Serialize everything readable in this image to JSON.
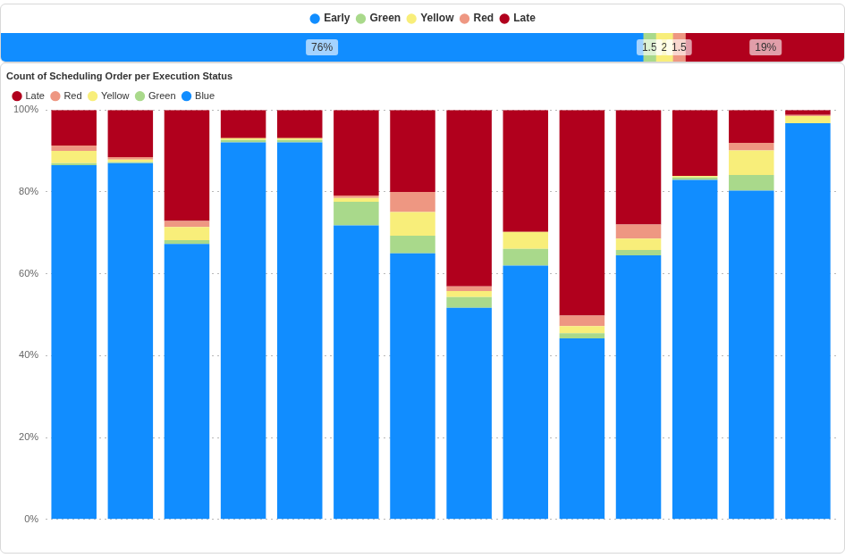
{
  "chart_data": [
    {
      "type": "bar",
      "orientation": "horizontal",
      "stacked": true,
      "legend": "top",
      "data_labels": true,
      "tick_labels": false,
      "categories": [
        null
      ],
      "xlim": [
        0,
        100
      ],
      "series": [
        {
          "name": "Early",
          "color": "#118DFF",
          "values": [
            76
          ],
          "value_labels": [
            "76%"
          ]
        },
        {
          "name": "Green",
          "color": "#A9D98B",
          "values": [
            1.5
          ]
        },
        {
          "name": "Yellow",
          "color": "#F8EE7A",
          "values": [
            2
          ]
        },
        {
          "name": "Red",
          "color": "#EE9782",
          "values": [
            1.5
          ]
        },
        {
          "name": "Late",
          "color": "#B1001D",
          "values": [
            19
          ],
          "value_labels": [
            "19%"
          ]
        }
      ]
    },
    {
      "type": "bar",
      "title": "Count of Scheduling Order per Execution Status",
      "stacked": true,
      "legend": "top-left",
      "grid": true,
      "categories": [
        null,
        null,
        null,
        null,
        null,
        null,
        null,
        null,
        null,
        null,
        null,
        null,
        null,
        null
      ],
      "ylim": [
        0,
        100
      ],
      "yticks": [
        {
          "value": 0,
          "label": "0%"
        },
        {
          "value": 20,
          "label": "20%"
        },
        {
          "value": 40,
          "label": "40%"
        },
        {
          "value": 60,
          "label": "60%"
        },
        {
          "value": 80,
          "label": "80%"
        },
        {
          "value": 100,
          "label": "100%"
        }
      ],
      "series": [
        {
          "name": "Late",
          "color": "#B1001D",
          "values": [
            8.7,
            11.5,
            27.1,
            6.9,
            6.9,
            20.9,
            20.0,
            43.1,
            29.8,
            50.2,
            28.0,
            16.1,
            8.0,
            1.2
          ]
        },
        {
          "name": "Red",
          "color": "#EE9782",
          "values": [
            1.3,
            0.6,
            1.5,
            0,
            0,
            0.6,
            4.9,
            1.1,
            0,
            2.6,
            3.4,
            0,
            1.9,
            0.3
          ]
        },
        {
          "name": "Yellow",
          "color": "#F8EE7A",
          "values": [
            3.0,
            0.6,
            3.2,
            0.4,
            0.4,
            0.9,
            5.8,
            1.5,
            4.1,
            1.7,
            2.8,
            0.4,
            6.0,
            1.7
          ]
        },
        {
          "name": "Green",
          "color": "#A9D98B",
          "values": [
            0.5,
            0.3,
            0.9,
            0.6,
            0.6,
            5.8,
            4.3,
            2.6,
            4.1,
            1.3,
            1.3,
            0.6,
            3.8,
            0
          ]
        },
        {
          "name": "Blue",
          "color": "#118DFF",
          "values": [
            86.5,
            87.0,
            67.3,
            92.1,
            92.1,
            71.8,
            65.0,
            51.7,
            62.0,
            44.2,
            64.5,
            82.9,
            80.3,
            96.8
          ]
        }
      ]
    }
  ]
}
